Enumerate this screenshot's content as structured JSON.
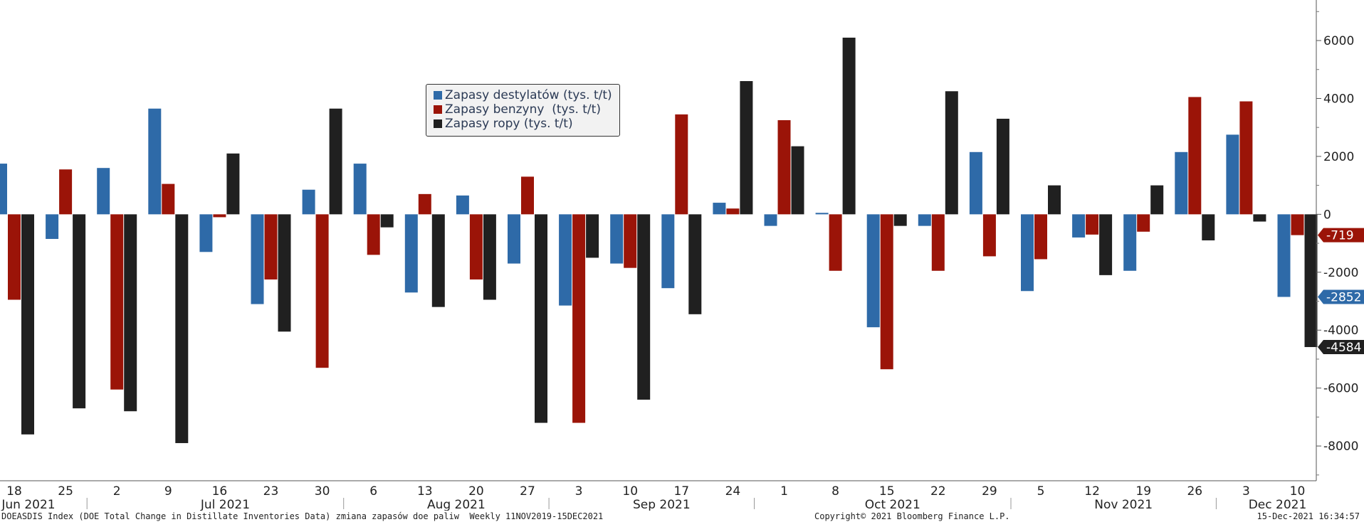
{
  "chart_data": {
    "type": "bar",
    "categories": [
      "18",
      "25",
      "2",
      "9",
      "16",
      "23",
      "30",
      "6",
      "13",
      "20",
      "27",
      "3",
      "10",
      "17",
      "24",
      "1",
      "8",
      "15",
      "22",
      "29",
      "5",
      "12",
      "19",
      "26",
      "3",
      "10"
    ],
    "months": [
      {
        "label": "Jun 2021",
        "start": 0
      },
      {
        "label": "Jul 2021",
        "start": 2
      },
      {
        "label": "Aug 2021",
        "start": 7
      },
      {
        "label": "Sep 2021",
        "start": 11
      },
      {
        "label": "Oct 2021",
        "start": 15
      },
      {
        "label": "Nov 2021",
        "start": 20
      },
      {
        "label": "Dec 2021",
        "start": 24
      }
    ],
    "series": [
      {
        "name": "Zapasy destylatów (tys. t/t)",
        "color": "#2e6aa8",
        "values": [
          1750,
          -850,
          1600,
          3650,
          -1300,
          -3100,
          850,
          1750,
          -2700,
          650,
          -1700,
          -3150,
          -1700,
          -2550,
          400,
          -400,
          50,
          -3900,
          -400,
          2150,
          -2650,
          -800,
          -1950,
          2150,
          2750,
          -2852
        ]
      },
      {
        "name": "Zapasy benzyny  (tys. t/t)",
        "color": "#9b1408",
        "values": [
          -2950,
          1550,
          -6050,
          1050,
          -100,
          -2250,
          -5300,
          -1400,
          700,
          -2250,
          1300,
          -7200,
          -1850,
          3450,
          200,
          3250,
          -1950,
          -5350,
          -1950,
          -1450,
          -1550,
          -700,
          -600,
          4050,
          3900,
          -719
        ]
      },
      {
        "name": "Zapasy ropy (tys. t/t)",
        "color": "#202020",
        "values": [
          -7600,
          -6700,
          -6800,
          -7900,
          2100,
          -4050,
          3650,
          -450,
          -3200,
          -2950,
          -7200,
          -1500,
          -6400,
          -3450,
          4600,
          2350,
          6100,
          -400,
          4250,
          3300,
          1000,
          -2100,
          1000,
          -900,
          -250,
          -4584
        ]
      }
    ],
    "ylim": [
      -9200,
      7400
    ],
    "yticks": [
      -8000,
      -6000,
      -4000,
      -2000,
      0,
      2000,
      4000,
      6000
    ],
    "last_value_tags": [
      {
        "text": "-719",
        "color": "#9b1408",
        "value": -719
      },
      {
        "text": "-2852",
        "color": "#2e6aa8",
        "value": -2852
      },
      {
        "text": "-4584",
        "color": "#202020",
        "value": -4584
      }
    ],
    "legend_position": "top-center",
    "grid": false,
    "y_axis_side": "right"
  },
  "footer": {
    "left": "DOEASDIS Index (DOE Total Change in Distillate Inventories Data) zmiana zapasów doe paliw  Weekly 11NOV2019-15DEC2021",
    "center": "Copyright© 2021 Bloomberg Finance L.P.",
    "right": "15-Dec-2021 16:34:57"
  }
}
